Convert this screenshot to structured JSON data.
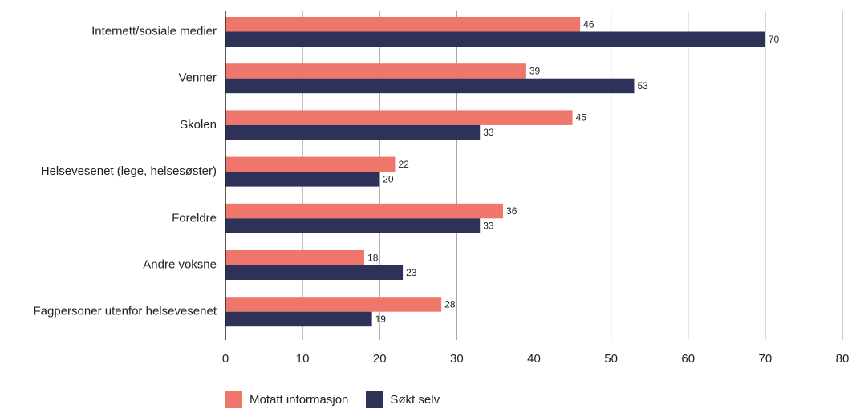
{
  "chart_data": {
    "type": "bar",
    "orientation": "horizontal",
    "categories": [
      "Internett/sosiale medier",
      "Venner",
      "Skolen",
      "Helsevesenet (lege, helsesøster)",
      "Foreldre",
      "Andre voksne",
      "Fagpersoner utenfor helsevesenet"
    ],
    "series": [
      {
        "name": "Motatt informasjon",
        "color": "#ef766b",
        "values": [
          46,
          39,
          45,
          22,
          36,
          18,
          28
        ]
      },
      {
        "name": "Søkt selv",
        "color": "#2e3158",
        "values": [
          70,
          53,
          33,
          20,
          33,
          23,
          19
        ]
      }
    ],
    "xlim": [
      0,
      80
    ],
    "xticks": [
      0,
      10,
      20,
      30,
      40,
      50,
      60,
      70,
      80
    ],
    "grid": "vertical",
    "legend_position": "bottom-left",
    "title": "",
    "xlabel": "",
    "ylabel": ""
  }
}
